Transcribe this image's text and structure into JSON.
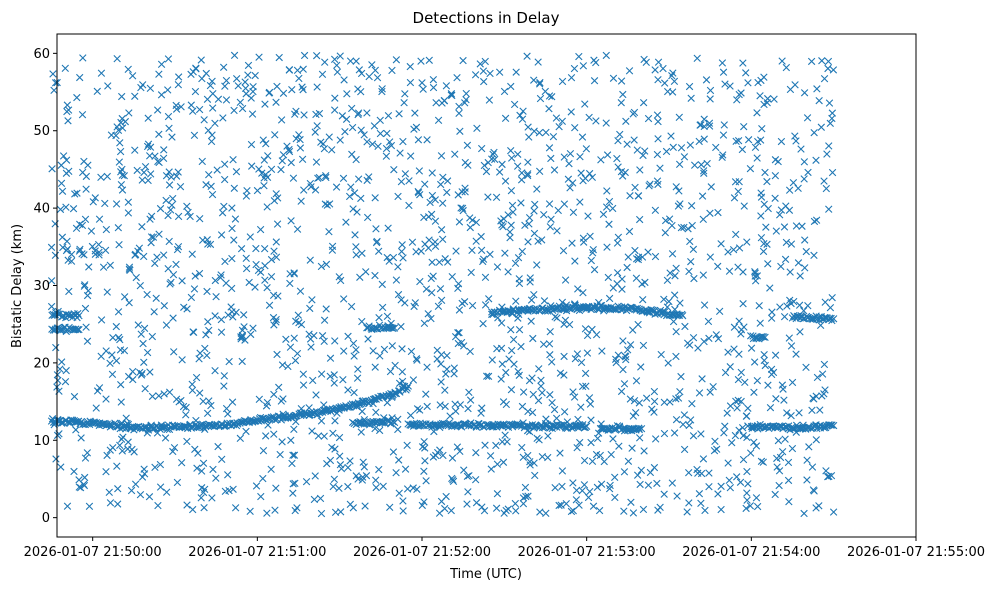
{
  "chart_data": {
    "type": "scatter",
    "title": "Detections in Delay",
    "xlabel": "Time (UTC)",
    "ylabel": "Bistatic Delay (km)",
    "x_ticks": [
      "2026-01-07 21:50:00",
      "2026-01-07 21:51:00",
      "2026-01-07 21:52:00",
      "2026-01-07 21:53:00",
      "2026-01-07 21:54:00",
      "2026-01-07 21:55:00"
    ],
    "y_ticks": [
      "0",
      "10",
      "20",
      "30",
      "40",
      "50",
      "60"
    ],
    "xlim": [
      "2026-01-07 21:49:47",
      "2026-01-07 21:55:00"
    ],
    "ylim": [
      -2.5,
      62.5
    ],
    "marker": "x",
    "color": "#1f77b4",
    "grid": false,
    "tracks": [
      {
        "points": [
          [
            "21:49:45",
            12.5
          ],
          [
            "21:50:00",
            12.2
          ],
          [
            "21:50:10",
            11.8
          ],
          [
            "21:50:20",
            11.6
          ],
          [
            "21:50:30",
            11.7
          ],
          [
            "21:50:40",
            11.8
          ],
          [
            "21:50:50",
            12.0
          ],
          [
            "21:51:00",
            12.6
          ],
          [
            "21:51:10",
            13.0
          ],
          [
            "21:51:20",
            13.5
          ],
          [
            "21:51:30",
            14.1
          ],
          [
            "21:51:40",
            14.9
          ],
          [
            "21:51:50",
            16.0
          ],
          [
            "21:51:55",
            17.0
          ]
        ]
      },
      {
        "points": [
          [
            "21:51:35",
            12.3
          ],
          [
            "21:51:50",
            12.3
          ]
        ]
      },
      {
        "points": [
          [
            "21:51:55",
            12.0
          ],
          [
            "21:52:20",
            12.0
          ],
          [
            "21:52:45",
            11.8
          ],
          [
            "21:53:00",
            11.8
          ]
        ]
      },
      {
        "points": [
          [
            "21:53:05",
            11.6
          ],
          [
            "21:53:20",
            11.5
          ]
        ]
      },
      {
        "points": [
          [
            "21:54:00",
            11.8
          ],
          [
            "21:54:15",
            11.6
          ],
          [
            "21:54:30",
            11.9
          ]
        ]
      },
      {
        "points": [
          [
            "21:49:45",
            26.2
          ],
          [
            "21:49:55",
            26.1
          ]
        ]
      },
      {
        "points": [
          [
            "21:49:45",
            24.3
          ],
          [
            "21:49:55",
            24.3
          ]
        ]
      },
      {
        "points": [
          [
            "21:51:40",
            24.5
          ],
          [
            "21:51:50",
            24.5
          ]
        ]
      },
      {
        "points": [
          [
            "21:52:25",
            26.5
          ],
          [
            "21:52:40",
            26.8
          ],
          [
            "21:53:00",
            27.2
          ],
          [
            "21:53:15",
            27.0
          ],
          [
            "21:53:25",
            26.5
          ],
          [
            "21:53:35",
            26.1
          ]
        ]
      },
      {
        "points": [
          [
            "21:54:15",
            26.0
          ],
          [
            "21:54:30",
            25.7
          ]
        ]
      },
      {
        "points": [
          [
            "21:54:00",
            23.3
          ],
          [
            "21:54:05",
            23.3
          ]
        ]
      }
    ],
    "noise": {
      "count": 1900,
      "x_range": [
        "21:49:45",
        "21:54:30"
      ],
      "y_range": [
        0.5,
        59.8
      ]
    }
  }
}
